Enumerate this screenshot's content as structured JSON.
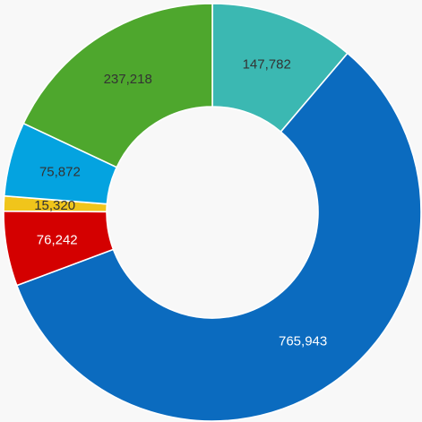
{
  "chart_data": {
    "type": "pie",
    "variant": "donut",
    "legend": "none",
    "slices": [
      {
        "label": "147,782",
        "value": 147782,
        "color": "#3bb8b2",
        "label_color": "#333333"
      },
      {
        "label": "765,943",
        "value": 765943,
        "color": "#0b6bbf",
        "label_color": "#ffffff"
      },
      {
        "label": "76,242",
        "value": 76242,
        "color": "#d40000",
        "label_color": "#ffffff"
      },
      {
        "label": "15,320",
        "value": 15320,
        "color": "#f0c51b",
        "label_color": "#333333"
      },
      {
        "label": "75,872",
        "value": 75872,
        "color": "#04a3e0",
        "label_color": "#333333"
      },
      {
        "label": "237,218",
        "value": 237218,
        "color": "#4ea72d",
        "label_color": "#333333"
      }
    ]
  }
}
